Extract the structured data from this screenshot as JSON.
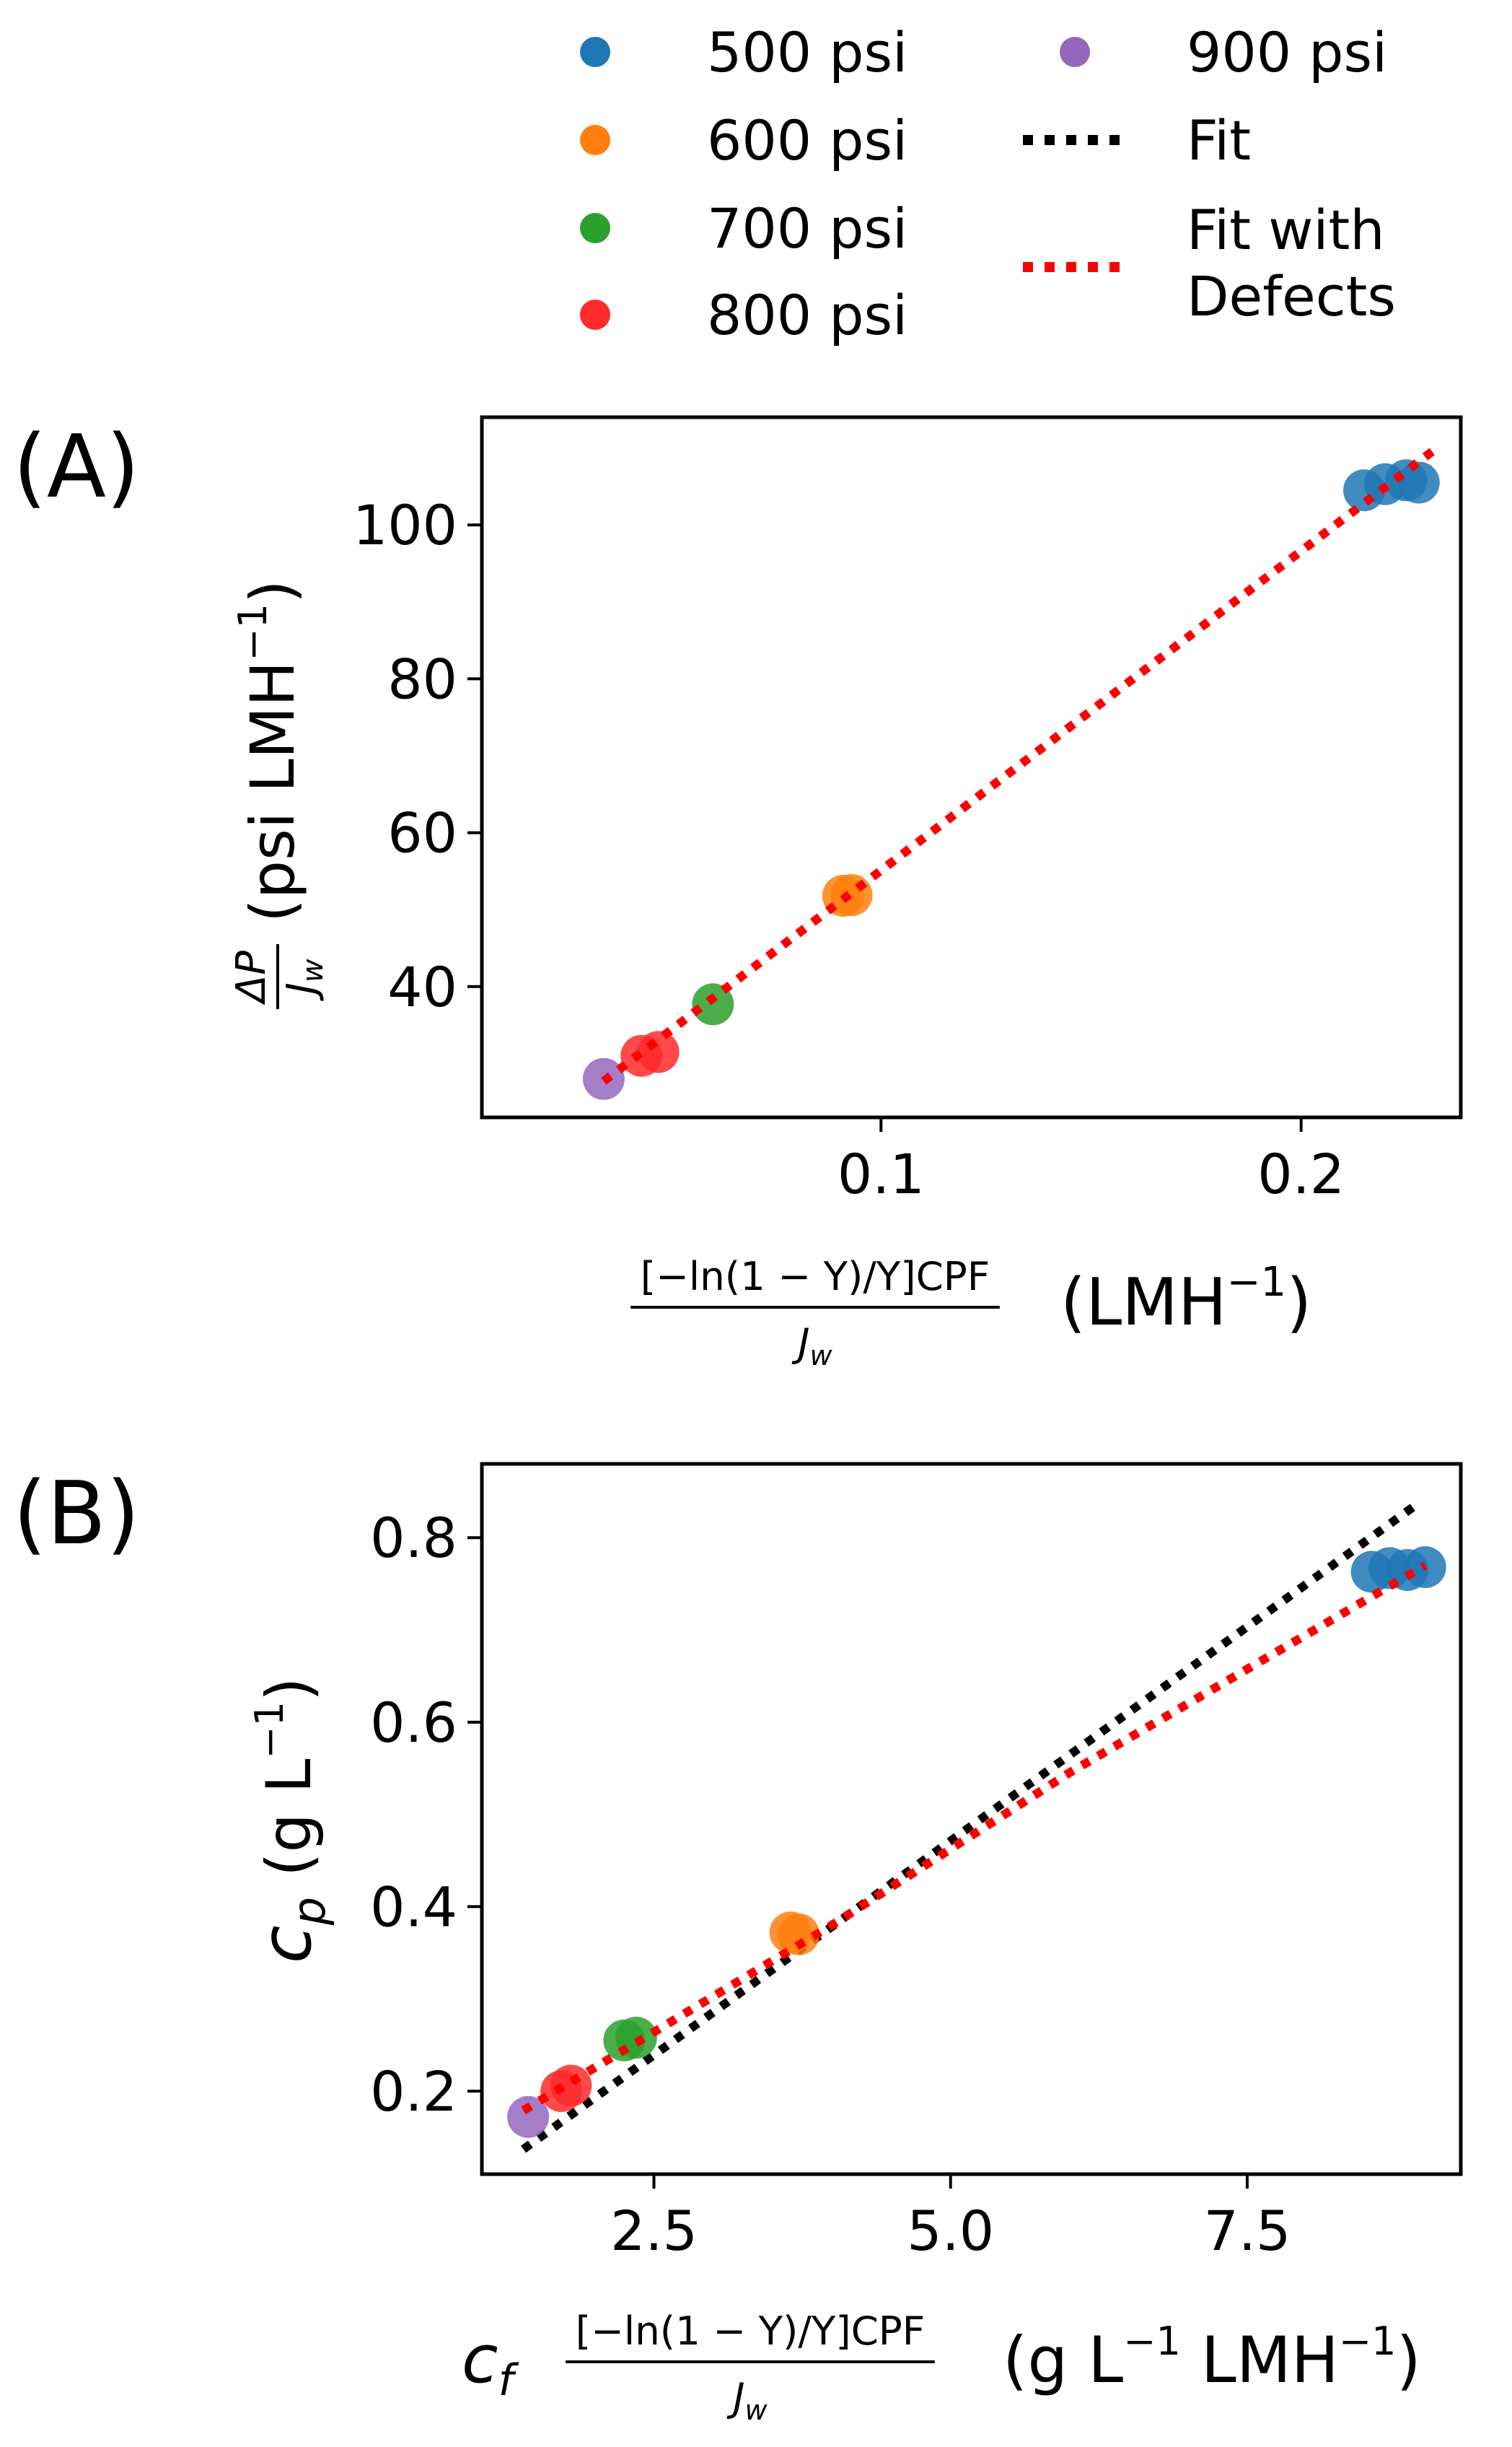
{
  "legend": {
    "entries": [
      {
        "label": "500 psi",
        "kind": "marker",
        "color": "#1f77b4"
      },
      {
        "label": "600 psi",
        "kind": "marker",
        "color": "#ff7f0e"
      },
      {
        "label": "700 psi",
        "kind": "marker",
        "color": "#2ca02c"
      },
      {
        "label": "800 psi",
        "kind": "marker",
        "color": "#ff2a2a"
      },
      {
        "label": "900 psi",
        "kind": "marker",
        "color": "#9467bd"
      },
      {
        "label": "Fit",
        "kind": "line",
        "color": "#000000"
      },
      {
        "label_lines": [
          "Fit with",
          "Defects"
        ],
        "kind": "line",
        "color": "#ff0000"
      }
    ]
  },
  "chart_data": [
    {
      "panel_label": "(A)",
      "type": "scatter",
      "xlabel": {
        "frac_num": "[−ln(1 − Y)/Y]CPF",
        "frac_den": "J",
        "frac_den_sub": "w",
        "unit": "(LMH",
        "unit_exp": "−1",
        "unit_close": ")"
      },
      "ylabel": {
        "frac_num": "ΔP",
        "frac_den": "J",
        "frac_den_sub": "w",
        "unit": "(psi LMH",
        "unit_exp": "−1",
        "unit_close": ")"
      },
      "xlim": [
        0.005,
        0.238
      ],
      "ylim": [
        23,
        114
      ],
      "xticks": [
        0.1,
        0.2
      ],
      "xtick_labels": [
        "0.1",
        "0.2"
      ],
      "yticks": [
        40,
        60,
        80,
        100
      ],
      "ytick_labels": [
        "40",
        "60",
        "80",
        "100"
      ],
      "series": [
        {
          "name": "500 psi",
          "color": "#1f77b4",
          "x": [
            0.215,
            0.22,
            0.225,
            0.228
          ],
          "y": [
            104.5,
            105.3,
            105.8,
            105.5
          ]
        },
        {
          "name": "600 psi",
          "color": "#ff7f0e",
          "x": [
            0.091,
            0.093
          ],
          "y": [
            51.8,
            51.9
          ]
        },
        {
          "name": "700 psi",
          "color": "#2ca02c",
          "x": [
            0.06
          ],
          "y": [
            37.7
          ]
        },
        {
          "name": "800 psi",
          "color": "#ff2a2a",
          "x": [
            0.043,
            0.047
          ],
          "y": [
            31.0,
            31.5
          ]
        },
        {
          "name": "900 psi",
          "color": "#9467bd",
          "x": [
            0.034
          ],
          "y": [
            28.0
          ]
        }
      ],
      "lines": [
        {
          "name": "Fit with Defects",
          "color": "#ff0000",
          "x": [
            0.034,
            0.233
          ],
          "y": [
            27.7,
            110.3
          ]
        }
      ]
    },
    {
      "panel_label": "(B)",
      "type": "scatter",
      "xlabel": {
        "prefix": "c",
        "prefix_sub": "f",
        "frac_num": "[−ln(1 − Y)/Y]CPF",
        "frac_den": "J",
        "frac_den_sub": "w",
        "unit": "(g L",
        "unit_exp": "−1",
        "unit_mid": " LMH",
        "unit_exp2": "−1",
        "unit_close": ")"
      },
      "ylabel": {
        "var": "c",
        "var_sub": "p",
        "unit": "(g L",
        "unit_exp": "−1",
        "unit_close": ")"
      },
      "xlim": [
        1.05,
        9.3
      ],
      "ylim": [
        0.11,
        0.88
      ],
      "xticks": [
        2.5,
        5.0,
        7.5
      ],
      "xtick_labels": [
        "2.5",
        "5.0",
        "7.5"
      ],
      "yticks": [
        0.2,
        0.4,
        0.6,
        0.8
      ],
      "ytick_labels": [
        "0.2",
        "0.4",
        "0.6",
        "0.8"
      ],
      "series": [
        {
          "name": "500 psi",
          "color": "#1f77b4",
          "x": [
            8.55,
            8.7,
            8.85,
            9.0
          ],
          "y": [
            0.763,
            0.767,
            0.765,
            0.768
          ]
        },
        {
          "name": "600 psi",
          "color": "#ff7f0e",
          "x": [
            3.65,
            3.72
          ],
          "y": [
            0.372,
            0.37
          ]
        },
        {
          "name": "700 psi",
          "color": "#2ca02c",
          "x": [
            2.25,
            2.35
          ],
          "y": [
            0.255,
            0.258
          ]
        },
        {
          "name": "800 psi",
          "color": "#ff2a2a",
          "x": [
            1.72,
            1.8
          ],
          "y": [
            0.2,
            0.206
          ]
        },
        {
          "name": "900 psi",
          "color": "#9467bd",
          "x": [
            1.44
          ],
          "y": [
            0.172
          ]
        }
      ],
      "lines": [
        {
          "name": "Fit",
          "color": "#000000",
          "x": [
            1.4,
            8.95
          ],
          "y": [
            0.137,
            0.838
          ]
        },
        {
          "name": "Fit with Defects",
          "color": "#ff0000",
          "x": [
            1.4,
            4.0,
            6.0,
            9.0
          ],
          "y": [
            0.179,
            0.38,
            0.545,
            0.77
          ]
        }
      ]
    }
  ]
}
